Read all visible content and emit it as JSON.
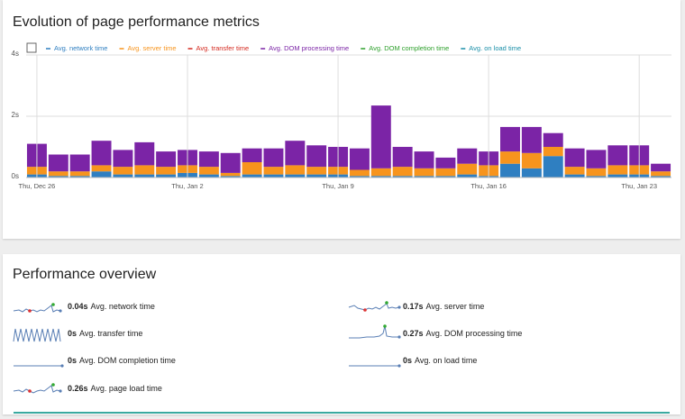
{
  "chart_data": {
    "type": "bar",
    "stacked": true,
    "title": "Evolution of page performance metrics",
    "categories": [
      "Thu, Dec 26",
      null,
      null,
      null,
      null,
      null,
      null,
      "Thu, Jan 2",
      null,
      null,
      null,
      null,
      null,
      null,
      "Thu, Jan 9",
      null,
      null,
      null,
      null,
      null,
      null,
      "Thu, Jan 16",
      null,
      null,
      null,
      null,
      null,
      null,
      "Thu, Jan 23",
      null
    ],
    "series": [
      {
        "name": "Avg. network time",
        "color": "#2f7fc1",
        "values": [
          0.1,
          0.05,
          0.05,
          0.2,
          0.1,
          0.1,
          0.1,
          0.15,
          0.1,
          0.05,
          0.1,
          0.1,
          0.1,
          0.1,
          0.1,
          0.05,
          0.05,
          0.05,
          0.05,
          0.05,
          0.1,
          0.05,
          0.45,
          0.3,
          0.7,
          0.1,
          0.05,
          0.1,
          0.1,
          0.05
        ]
      },
      {
        "name": "Avg. server time",
        "color": "#f7941d",
        "values": [
          0.25,
          0.15,
          0.15,
          0.2,
          0.25,
          0.3,
          0.25,
          0.25,
          0.25,
          0.1,
          0.4,
          0.25,
          0.3,
          0.25,
          0.25,
          0.2,
          0.25,
          0.3,
          0.25,
          0.25,
          0.35,
          0.35,
          0.4,
          0.5,
          0.3,
          0.25,
          0.25,
          0.3,
          0.3,
          0.15
        ]
      },
      {
        "name": "Avg. transfer time",
        "color": "#d4291f",
        "values": [
          0,
          0,
          0,
          0,
          0,
          0,
          0,
          0,
          0,
          0,
          0,
          0,
          0,
          0,
          0,
          0,
          0,
          0,
          0,
          0,
          0,
          0,
          0,
          0,
          0,
          0,
          0,
          0,
          0,
          0
        ]
      },
      {
        "name": "Avg. DOM processing time",
        "color": "#7b24a6",
        "values": [
          0.75,
          0.55,
          0.55,
          0.8,
          0.55,
          0.75,
          0.5,
          0.5,
          0.5,
          0.65,
          0.45,
          0.6,
          0.8,
          0.7,
          0.65,
          0.7,
          2.05,
          0.65,
          0.55,
          0.35,
          0.5,
          0.45,
          0.8,
          0.85,
          0.45,
          0.6,
          0.6,
          0.65,
          0.65,
          0.25
        ]
      },
      {
        "name": "Avg. DOM completion time",
        "color": "#2ea02c",
        "values": [
          0,
          0,
          0,
          0,
          0,
          0,
          0,
          0,
          0,
          0,
          0,
          0,
          0,
          0,
          0,
          0,
          0,
          0,
          0,
          0,
          0,
          0,
          0,
          0,
          0,
          0,
          0,
          0,
          0,
          0
        ]
      },
      {
        "name": "Avg. on load time",
        "color": "#1a8fa8",
        "values": [
          0,
          0,
          0,
          0,
          0,
          0,
          0,
          0,
          0,
          0,
          0,
          0,
          0,
          0,
          0,
          0,
          0,
          0,
          0,
          0,
          0,
          0,
          0,
          0,
          0,
          0,
          0,
          0,
          0,
          0
        ]
      }
    ],
    "ylim": [
      0,
      4
    ],
    "yticks": [
      {
        "value": 0,
        "label": "0s"
      },
      {
        "value": 2,
        "label": "2s"
      },
      {
        "value": 4,
        "label": "4s"
      }
    ],
    "grid": true
  },
  "overview": {
    "title": "Performance overview",
    "items": [
      {
        "value": "0.04s",
        "label": "Avg. network time"
      },
      {
        "value": "0.17s",
        "label": "Avg. server time"
      },
      {
        "value": "0s",
        "label": "Avg. transfer time"
      },
      {
        "value": "0.27s",
        "label": "Avg. DOM processing time"
      },
      {
        "value": "0s",
        "label": "Avg. DOM completion time"
      },
      {
        "value": "0s",
        "label": "Avg. on load time"
      },
      {
        "value": "0.26s",
        "label": "Avg. page load time"
      }
    ]
  }
}
